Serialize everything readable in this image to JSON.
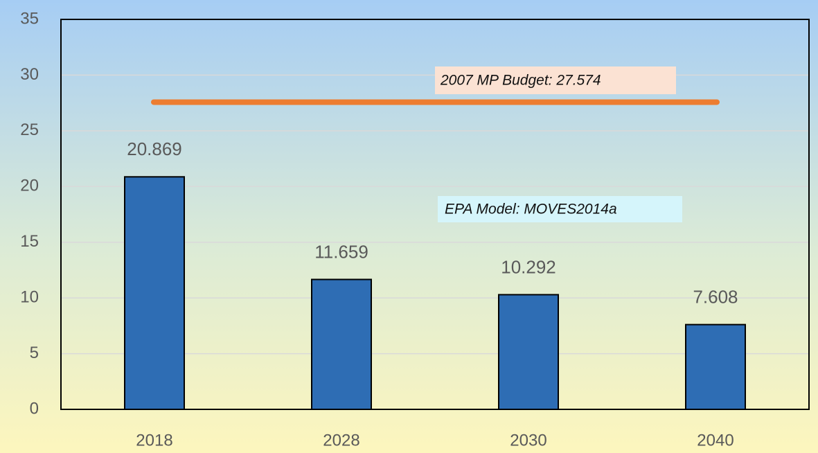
{
  "chart_data": {
    "type": "bar",
    "categories": [
      "2018",
      "2028",
      "2030",
      "2040"
    ],
    "values": [
      20.869,
      11.659,
      10.292,
      7.608
    ],
    "color": "#2e6db4",
    "ylim": [
      0,
      35
    ],
    "yticks": [
      0,
      5,
      10,
      15,
      20,
      25,
      30,
      35
    ],
    "grid": true,
    "reference_line": {
      "value": 27.574,
      "label": "2007 MP Budget:  27.574",
      "color": "#ed7d31"
    },
    "annotation": "EPA Model:  MOVES2014a"
  }
}
